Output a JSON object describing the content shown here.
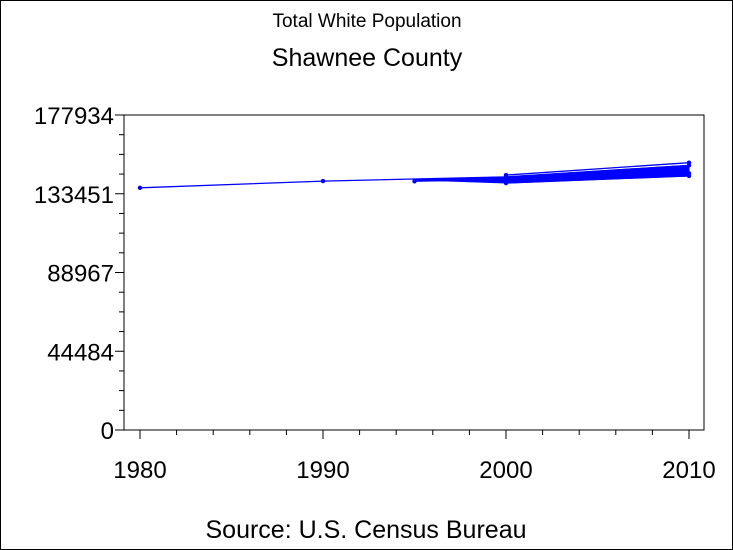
{
  "chart_data": {
    "type": "line",
    "title": "Total White Population",
    "subtitle": "Shawnee County",
    "footnote": "Source: U.S. Census Bureau",
    "xlabel": "",
    "ylabel": "",
    "x_ticks": [
      "1980",
      "1990",
      "2000",
      "2010"
    ],
    "y_ticks": [
      "0",
      "44484",
      "88967",
      "133451",
      "177934"
    ],
    "xlim": [
      1980,
      2010
    ],
    "ylim": [
      0,
      177934
    ],
    "series_color": "#0000ff",
    "series": [
      {
        "x": [
          1980,
          1990,
          2000,
          2010
        ],
        "y": [
          136800,
          140600,
          143000,
          149500
        ]
      },
      {
        "x": [
          1995,
          2000,
          2010
        ],
        "y": [
          140500,
          141500,
          145000
        ]
      },
      {
        "x": [
          2000,
          2010
        ],
        "y": [
          139500,
          143500
        ]
      },
      {
        "x": [
          2000,
          2010
        ],
        "y": [
          144000,
          151000
        ]
      }
    ]
  }
}
